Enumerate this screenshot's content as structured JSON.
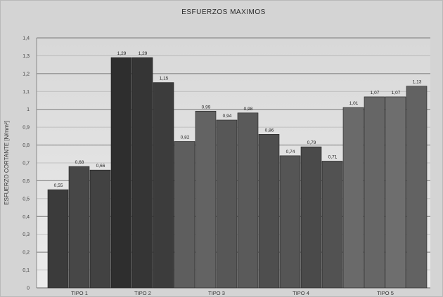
{
  "chart_data": {
    "type": "bar",
    "title": "ESFUERZOS MAXIMOS",
    "xlabel": "",
    "ylabel": "ESFUERZO CORTANTE [N/mm²]",
    "ylim": [
      0,
      1.4
    ],
    "yticks": [
      "0",
      "0,1",
      "0,2",
      "0,3",
      "0,4",
      "0,5",
      "0,6",
      "0,7",
      "0,8",
      "0,9",
      "1",
      "1,1",
      "1,2",
      "1,3",
      "1,4"
    ],
    "grid": true,
    "categories": [
      "TIPO 1",
      "TIPO 2",
      "TIPO 3",
      "TIPO 4",
      "TIPO 5"
    ],
    "bars": [
      {
        "group": 0,
        "value": 0.55,
        "label": "0,55",
        "color": "#3b3b3b"
      },
      {
        "group": 0,
        "value": 0.68,
        "label": "0,68",
        "color": "#474747"
      },
      {
        "group": 0,
        "value": 0.66,
        "label": "0,66",
        "color": "#424242"
      },
      {
        "group": 1,
        "value": 1.29,
        "label": "1,29",
        "color": "#2e2e2e"
      },
      {
        "group": 1,
        "value": 1.29,
        "label": "1,29",
        "color": "#353535"
      },
      {
        "group": 1,
        "value": 1.15,
        "label": "1,15",
        "color": "#3c3c3c"
      },
      {
        "group": 2,
        "value": 0.82,
        "label": "0,82",
        "color": "#5e5e5e"
      },
      {
        "group": 2,
        "value": 0.99,
        "label": "0,99",
        "color": "#636363"
      },
      {
        "group": 2,
        "value": 0.94,
        "label": "0,94",
        "color": "#575757"
      },
      {
        "group": 2,
        "value": 0.98,
        "label": "0,98",
        "color": "#5a5a5a"
      },
      {
        "group": 3,
        "value": 0.86,
        "label": "0,86",
        "color": "#4e4e4e"
      },
      {
        "group": 3,
        "value": 0.74,
        "label": "0,74",
        "color": "#555555"
      },
      {
        "group": 3,
        "value": 0.79,
        "label": "0,79",
        "color": "#4a4a4a"
      },
      {
        "group": 3,
        "value": 0.71,
        "label": "0,71",
        "color": "#525252"
      },
      {
        "group": 4,
        "value": 1.01,
        "label": "1,01",
        "color": "#6a6a6a"
      },
      {
        "group": 4,
        "value": 1.07,
        "label": "1,07",
        "color": "#666666"
      },
      {
        "group": 4,
        "value": 1.07,
        "label": "1,07",
        "color": "#6e6e6e"
      },
      {
        "group": 4,
        "value": 1.13,
        "label": "1,13",
        "color": "#626262"
      }
    ]
  }
}
